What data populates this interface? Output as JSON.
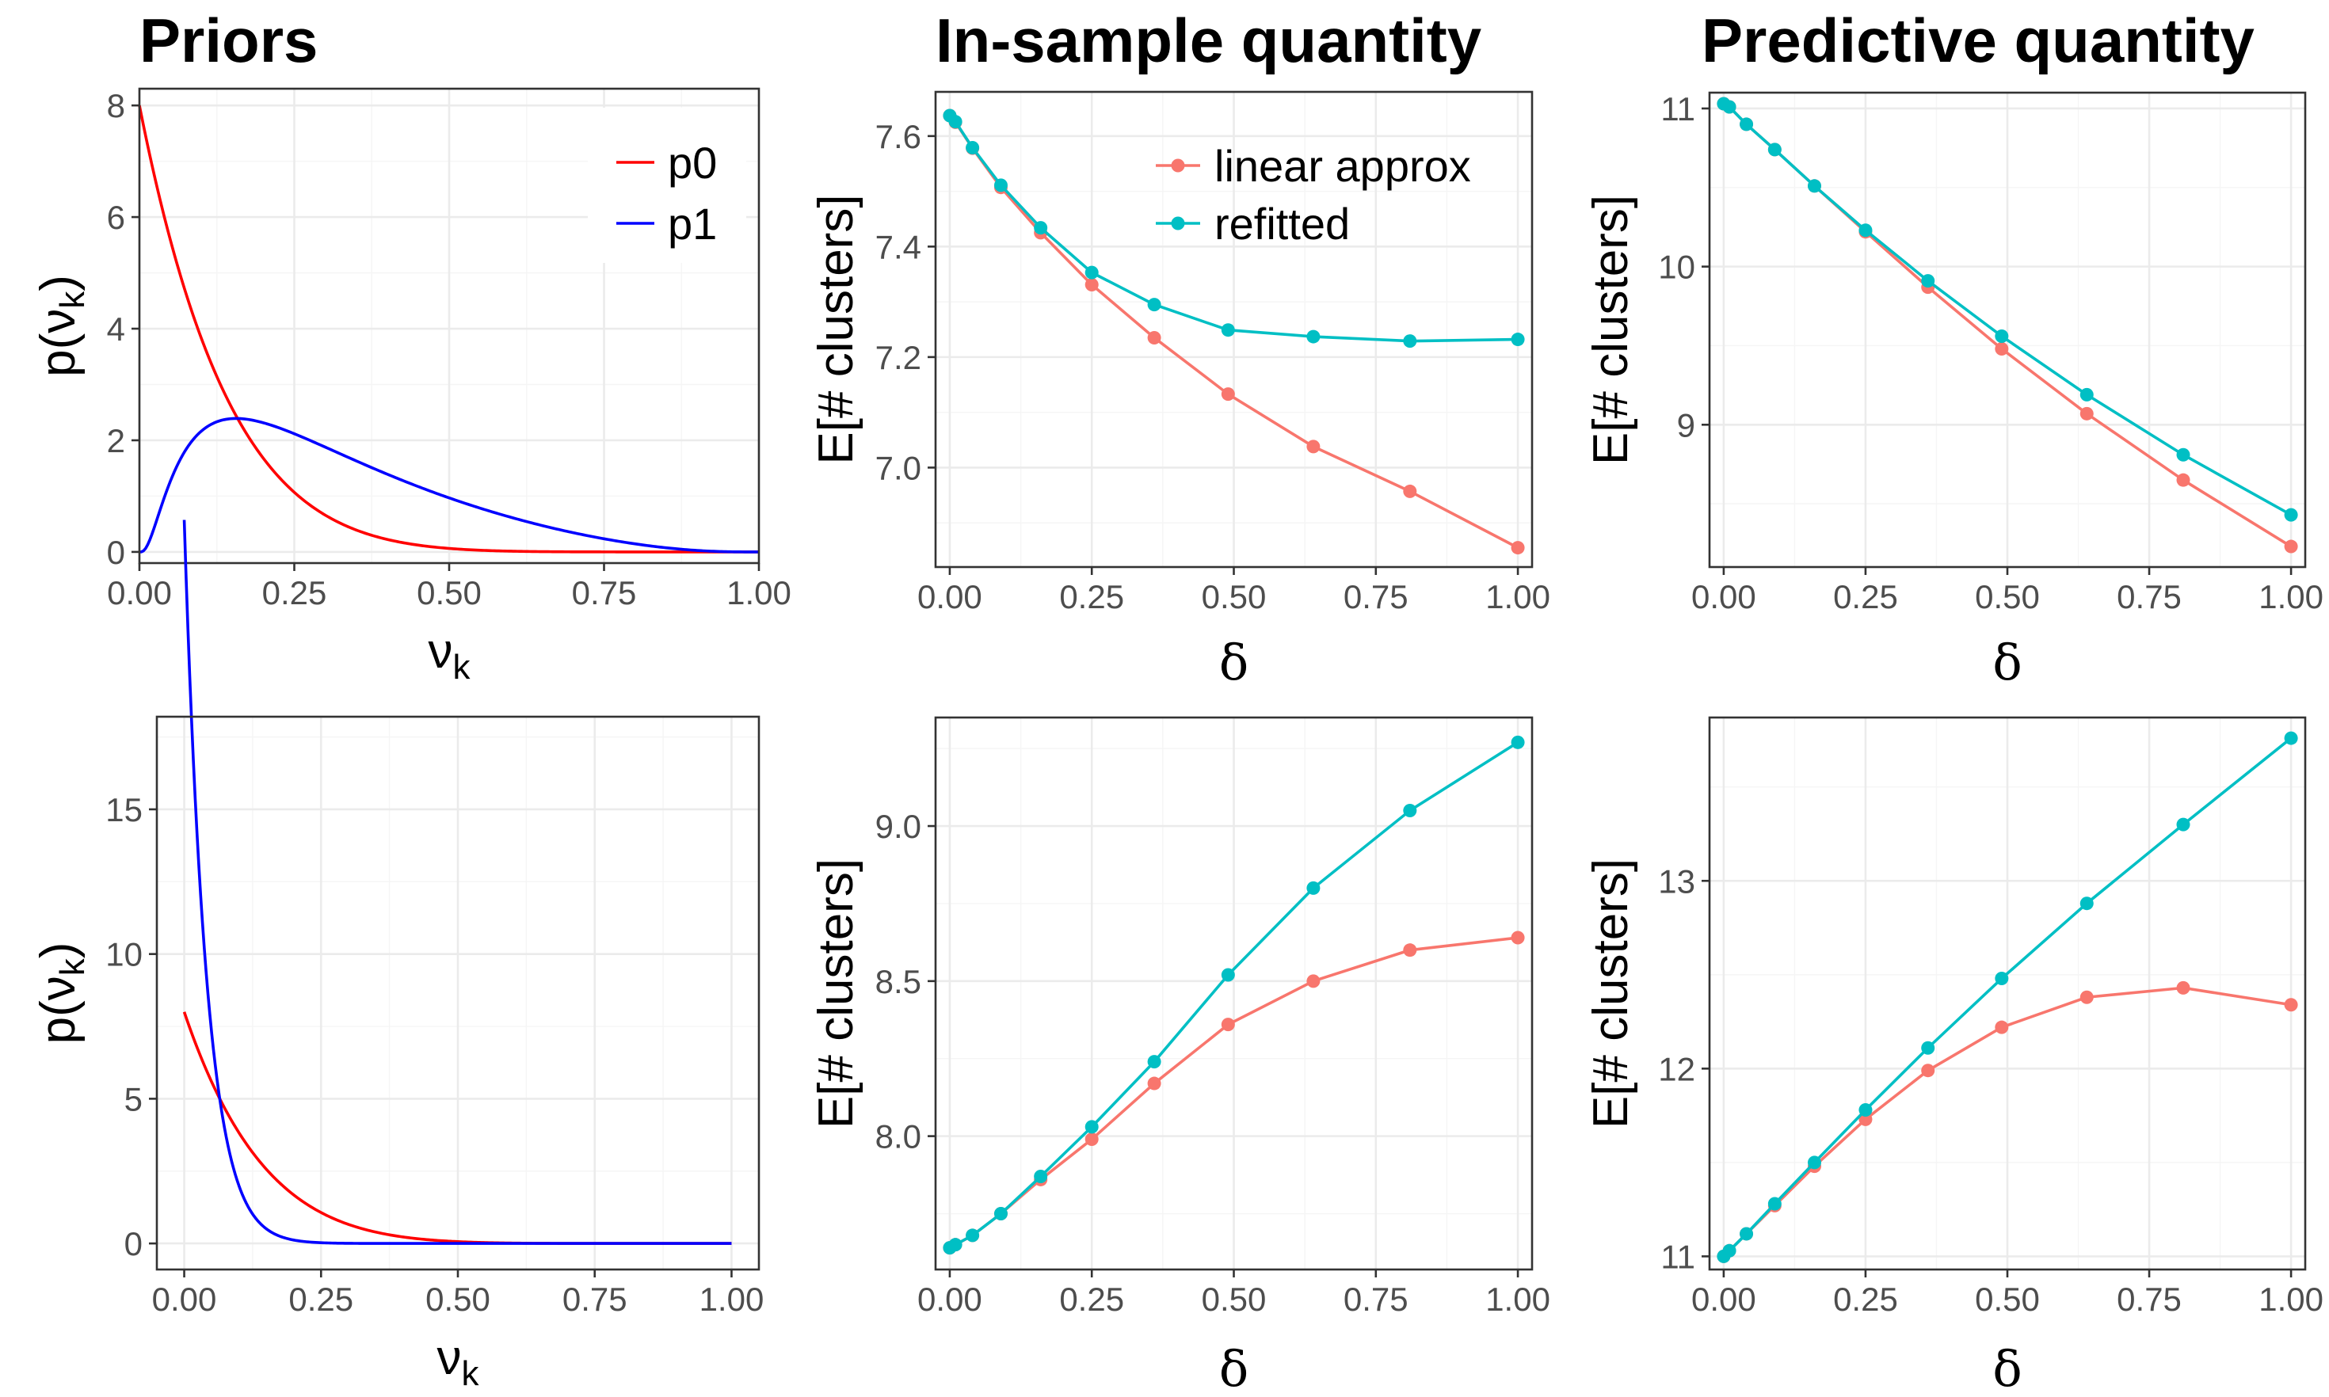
{
  "column_titles": [
    "Priors",
    "In-sample quantity",
    "Predictive quantity"
  ],
  "colors": {
    "p0": "#ff0000",
    "p1": "#0000ff",
    "linear_approx": "#f8766d",
    "refitted": "#00bfc4"
  },
  "chart_data": [
    {
      "id": "priors-top",
      "type": "line",
      "title": "Priors",
      "xlabel": "ν_k",
      "ylabel": "p(ν_k)",
      "xlim": [
        0,
        1
      ],
      "ylim": [
        -0.2,
        8.3
      ],
      "xticks": [
        0,
        0.25,
        0.5,
        0.75,
        1
      ],
      "xtick_labels": [
        "0.00",
        "0.25",
        "0.50",
        "0.75",
        "1.00"
      ],
      "yticks": [
        0,
        2,
        4,
        6,
        8
      ],
      "ytick_labels": [
        "0",
        "2",
        "4",
        "6",
        "8"
      ],
      "grid": true,
      "legend": "top-right",
      "legend_boxed": true,
      "series": [
        {
          "name": "p0",
          "color": "#ff0000",
          "markers": false,
          "curve": {
            "kind": "beta",
            "a": 1,
            "b": 8
          }
        },
        {
          "name": "p1",
          "color": "#0000ff",
          "markers": false,
          "curve": {
            "kind": "logitnormal",
            "mu": -1,
            "sigma": 1
          }
        }
      ]
    },
    {
      "id": "insample-top",
      "type": "line",
      "title": "In-sample quantity",
      "xlabel": "δ",
      "ylabel": "E[# clusters]",
      "xlim": [
        -0.025,
        1.025
      ],
      "ylim": [
        6.82,
        7.68
      ],
      "xticks": [
        0,
        0.25,
        0.5,
        0.75,
        1
      ],
      "xtick_labels": [
        "0.00",
        "0.25",
        "0.50",
        "0.75",
        "1.00"
      ],
      "yticks": [
        7.0,
        7.2,
        7.4,
        7.6
      ],
      "ytick_labels": [
        "7.0",
        "7.2",
        "7.4",
        "7.6"
      ],
      "grid": true,
      "legend": "top-right",
      "x": [
        0,
        0.01,
        0.04,
        0.09,
        0.16,
        0.25,
        0.36,
        0.49,
        0.64,
        0.81,
        1.0
      ],
      "series": [
        {
          "name": "linear approx",
          "color": "#f8766d",
          "markers": true,
          "values": [
            7.637,
            7.625,
            7.578,
            7.507,
            7.425,
            7.331,
            7.235,
            7.133,
            7.038,
            6.957,
            6.855
          ]
        },
        {
          "name": "refitted",
          "color": "#00bfc4",
          "markers": true,
          "values": [
            7.637,
            7.626,
            7.579,
            7.511,
            7.434,
            7.353,
            7.295,
            7.249,
            7.237,
            7.229,
            7.232
          ]
        }
      ]
    },
    {
      "id": "predictive-top",
      "type": "line",
      "title": "Predictive quantity",
      "xlabel": "δ",
      "ylabel": "E[# clusters]",
      "xlim": [
        -0.025,
        1.025
      ],
      "ylim": [
        8.1,
        11.1
      ],
      "xticks": [
        0,
        0.25,
        0.5,
        0.75,
        1
      ],
      "xtick_labels": [
        "0.00",
        "0.25",
        "0.50",
        "0.75",
        "1.00"
      ],
      "yticks": [
        9,
        10,
        11
      ],
      "ytick_labels": [
        "9",
        "10",
        "11"
      ],
      "grid": true,
      "legend": "none",
      "x": [
        0,
        0.01,
        0.04,
        0.09,
        0.16,
        0.25,
        0.36,
        0.49,
        0.64,
        0.81,
        1.0
      ],
      "series": [
        {
          "name": "linear approx",
          "color": "#f8766d",
          "markers": true,
          "values": [
            11.03,
            11.01,
            10.9,
            10.74,
            10.51,
            10.22,
            9.87,
            9.48,
            9.07,
            8.65,
            8.23
          ]
        },
        {
          "name": "refitted",
          "color": "#00bfc4",
          "markers": true,
          "values": [
            11.03,
            11.01,
            10.9,
            10.74,
            10.51,
            10.23,
            9.91,
            9.56,
            9.19,
            8.81,
            8.43
          ]
        }
      ]
    },
    {
      "id": "priors-bottom",
      "type": "line",
      "xlabel": "ν_k",
      "ylabel": "p(ν_k)",
      "xlim": [
        -0.05,
        1.05
      ],
      "ylim": [
        -0.9,
        18.2
      ],
      "xticks": [
        0,
        0.25,
        0.5,
        0.75,
        1
      ],
      "xtick_labels": [
        "0.00",
        "0.25",
        "0.50",
        "0.75",
        "1.00"
      ],
      "yticks": [
        0,
        5,
        10,
        15
      ],
      "ytick_labels": [
        "0",
        "5",
        "10",
        "15"
      ],
      "grid": true,
      "legend": "none",
      "series": [
        {
          "name": "p0",
          "color": "#ff0000",
          "markers": false,
          "curve": {
            "kind": "beta",
            "a": 1,
            "b": 8
          }
        },
        {
          "name": "p1",
          "color": "#0000ff",
          "markers": false,
          "curve": {
            "kind": "beta",
            "a": 1,
            "b": 25
          }
        }
      ]
    },
    {
      "id": "insample-bottom",
      "type": "line",
      "xlabel": "δ",
      "ylabel": "E[# clusters]",
      "xlim": [
        -0.025,
        1.025
      ],
      "ylim": [
        7.57,
        9.35
      ],
      "xticks": [
        0,
        0.25,
        0.5,
        0.75,
        1
      ],
      "xtick_labels": [
        "0.00",
        "0.25",
        "0.50",
        "0.75",
        "1.00"
      ],
      "yticks": [
        8.0,
        8.5,
        9.0
      ],
      "ytick_labels": [
        "8.0",
        "8.5",
        "9.0"
      ],
      "grid": true,
      "legend": "none",
      "x": [
        0,
        0.01,
        0.04,
        0.09,
        0.16,
        0.25,
        0.36,
        0.49,
        0.64,
        0.81,
        1.0
      ],
      "series": [
        {
          "name": "linear approx",
          "color": "#f8766d",
          "markers": true,
          "values": [
            7.64,
            7.65,
            7.68,
            7.75,
            7.86,
            7.99,
            8.17,
            8.36,
            8.5,
            8.6,
            8.64
          ]
        },
        {
          "name": "refitted",
          "color": "#00bfc4",
          "markers": true,
          "values": [
            7.64,
            7.65,
            7.68,
            7.75,
            7.87,
            8.03,
            8.24,
            8.52,
            8.8,
            9.05,
            9.27
          ]
        }
      ]
    },
    {
      "id": "predictive-bottom",
      "type": "line",
      "xlabel": "δ",
      "ylabel": "E[# clusters]",
      "xlim": [
        -0.025,
        1.025
      ],
      "ylim": [
        10.93,
        13.87
      ],
      "xticks": [
        0,
        0.25,
        0.5,
        0.75,
        1
      ],
      "xtick_labels": [
        "0.00",
        "0.25",
        "0.50",
        "0.75",
        "1.00"
      ],
      "yticks": [
        11,
        12,
        13
      ],
      "ytick_labels": [
        "11",
        "12",
        "13"
      ],
      "grid": true,
      "legend": "none",
      "x": [
        0,
        0.01,
        0.04,
        0.09,
        0.16,
        0.25,
        0.36,
        0.49,
        0.64,
        0.81,
        1.0
      ],
      "series": [
        {
          "name": "linear approx",
          "color": "#f8766d",
          "markers": true,
          "values": [
            11.0,
            11.03,
            11.12,
            11.27,
            11.48,
            11.73,
            11.99,
            12.22,
            12.38,
            12.43,
            12.34
          ]
        },
        {
          "name": "refitted",
          "color": "#00bfc4",
          "markers": true,
          "values": [
            11.0,
            11.03,
            11.12,
            11.28,
            11.5,
            11.78,
            12.11,
            12.48,
            12.88,
            13.3,
            13.76
          ]
        }
      ]
    }
  ]
}
